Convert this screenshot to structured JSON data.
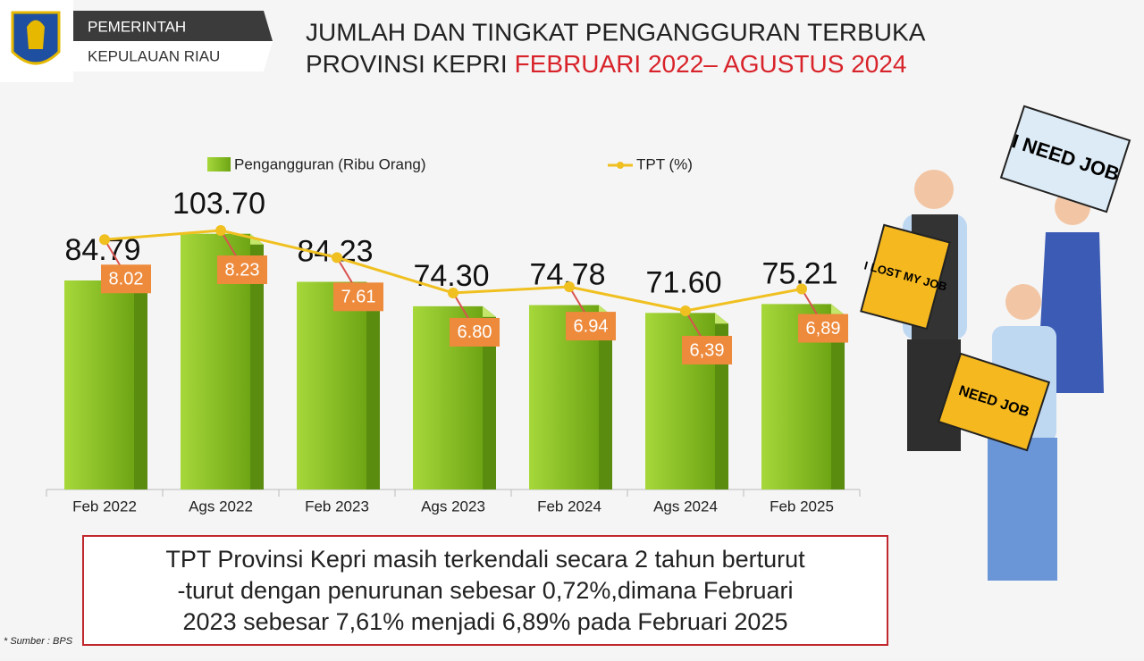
{
  "header": {
    "line1": "PEMERINTAH",
    "line2": "KEPULAUAN RIAU"
  },
  "title": {
    "line1": "JUMLAH DAN TINGKAT PENGANGGURAN TERBUKA",
    "line2": "PROVINSI KEPRI",
    "highlight": "FEBRUARI 2022– AGUSTUS 2024"
  },
  "chart_data": {
    "type": "bar",
    "categories": [
      "Feb 2022",
      "Ags 2022",
      "Feb 2023",
      "Ags 2023",
      "Feb 2024",
      "Ags 2024",
      "Feb 2025"
    ],
    "series": [
      {
        "name": "Pengangguran (Ribu Orang)",
        "type": "bar",
        "color": "#8cc320",
        "values": [
          84.79,
          103.7,
          84.23,
          74.3,
          74.78,
          71.6,
          75.21
        ],
        "value_labels": [
          "84.79",
          "103.70",
          "84.23",
          "74.30",
          "74.78",
          "71.60",
          "75.21"
        ]
      },
      {
        "name": "TPT (%)",
        "type": "line",
        "color": "#f0c020",
        "values": [
          8.02,
          8.23,
          7.61,
          6.8,
          6.94,
          6.39,
          6.89
        ],
        "value_labels": [
          "8.02",
          "8.23",
          "7.61",
          "6.80",
          "6.94",
          "6,39",
          "6,89"
        ]
      }
    ]
  },
  "note": [
    "TPT Provinsi Kepri masih terkendali secara 2 tahun berturut",
    "-turut dengan penurunan sebesar 0,72%,dimana Februari",
    "2023 sebesar 7,61% menjadi  6,89% pada Februari 2025"
  ],
  "source": "* Sumber : BPS",
  "signs": [
    "I NEED JOB",
    "I LOST MY JOB",
    "NEED JOB"
  ]
}
